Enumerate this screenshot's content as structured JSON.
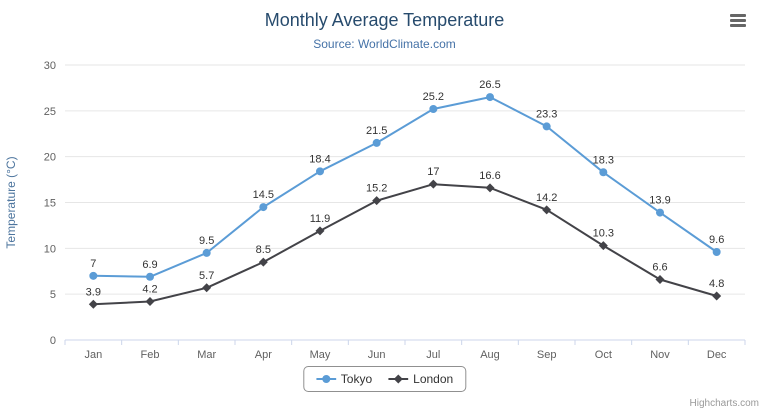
{
  "chart": {
    "credits": "Highcharts.com"
  },
  "icons": {
    "context_menu": "hamburger-menu-icon"
  },
  "theme": {
    "title_color": "#274b6d",
    "subtitle_color": "#4572a7",
    "y_axis_title_color": "#4d759e",
    "tick_label_color": "#606060",
    "data_label_color": "#333333",
    "grid_color": "#e6e6e6",
    "axis_line_color": "#ccd6eb",
    "legend_text_color": "#333333",
    "credits_color": "#999999"
  },
  "chart_data": {
    "type": "line",
    "title": "Monthly Average Temperature",
    "subtitle": "Source: WorldClimate.com",
    "categories": [
      "Jan",
      "Feb",
      "Mar",
      "Apr",
      "May",
      "Jun",
      "Jul",
      "Aug",
      "Sep",
      "Oct",
      "Nov",
      "Dec"
    ],
    "series": [
      {
        "name": "Tokyo",
        "color": "#5b9cd6",
        "marker": "circle",
        "values": [
          7,
          6.9,
          9.5,
          14.5,
          18.4,
          21.5,
          25.2,
          26.5,
          23.3,
          18.3,
          13.9,
          9.6
        ]
      },
      {
        "name": "London",
        "color": "#434348",
        "marker": "diamond",
        "values": [
          3.9,
          4.2,
          5.7,
          8.5,
          11.9,
          15.2,
          17,
          16.6,
          14.2,
          10.3,
          6.6,
          4.8
        ]
      }
    ],
    "xlabel": "",
    "ylabel": "Temperature (°C)",
    "ylim": [
      0,
      30
    ],
    "ytick_step": 5,
    "grid": true,
    "legend_position": "bottom",
    "data_labels": true
  }
}
